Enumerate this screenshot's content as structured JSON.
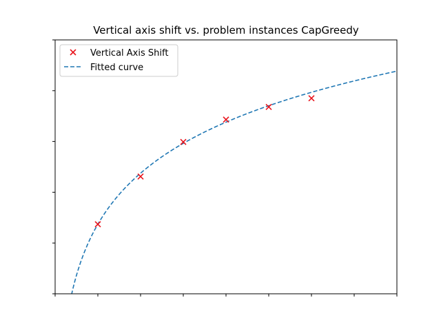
{
  "chart_data": {
    "type": "scatter",
    "title": "Vertical axis shift vs. problem instances CapGreedy",
    "xlabel": "",
    "ylabel": "",
    "tick_labels_visible": false,
    "x_tick_count": 9,
    "y_tick_count": 6,
    "xlim": [
      0,
      8
    ],
    "ylim": [
      0,
      5
    ],
    "grid": false,
    "legend_position": "top-left",
    "series": [
      {
        "name": "Vertical Axis Shift",
        "type": "scatter",
        "marker": "x",
        "color": "#e8141c",
        "x": [
          1,
          2,
          3,
          4,
          5,
          6
        ],
        "y": [
          1.37,
          2.31,
          2.99,
          3.43,
          3.68,
          3.85
        ]
      },
      {
        "name": "Fitted curve",
        "type": "line",
        "line_style": "dashed",
        "color": "#1f77b4",
        "model": "logarithmic",
        "a": 1.37,
        "b": 1.45
      }
    ]
  }
}
